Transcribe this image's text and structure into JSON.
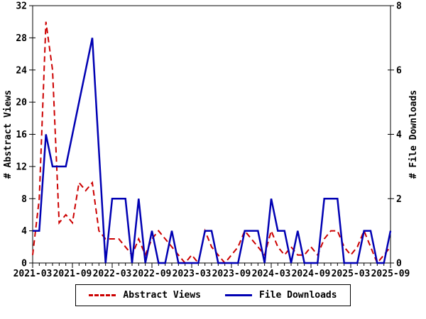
{
  "chart_data": {
    "type": "line",
    "title": "",
    "x_label": "",
    "months": [
      "2021-03",
      "2021-04",
      "2021-05",
      "2021-06",
      "2021-07",
      "2021-08",
      "2021-09",
      "2021-10",
      "2021-11",
      "2021-12",
      "2022-01",
      "2022-02",
      "2022-03",
      "2022-04",
      "2022-05",
      "2022-06",
      "2022-07",
      "2022-08",
      "2022-09",
      "2022-10",
      "2022-11",
      "2022-12",
      "2023-01",
      "2023-02",
      "2023-03",
      "2023-04",
      "2023-05",
      "2023-06",
      "2023-07",
      "2023-08",
      "2023-09",
      "2023-10",
      "2023-11",
      "2023-12",
      "2024-01",
      "2024-02",
      "2024-03",
      "2024-04",
      "2024-05",
      "2024-06",
      "2024-07",
      "2024-08",
      "2024-09",
      "2024-10",
      "2024-11",
      "2024-12",
      "2025-01",
      "2025-02",
      "2025-03",
      "2025-04",
      "2025-05",
      "2025-06",
      "2025-07",
      "2025-08",
      "2025-09"
    ],
    "series": [
      {
        "name": "Abstract Views",
        "axis": "left",
        "color": "#cc0000",
        "style": "dashed",
        "values": [
          1,
          8,
          30,
          24,
          5,
          6,
          5,
          10,
          9,
          10,
          4,
          3,
          3,
          3,
          2,
          1,
          3,
          1,
          3,
          4,
          3,
          2,
          1,
          0,
          1,
          0,
          4,
          2,
          1,
          0,
          1,
          2,
          4,
          3,
          2,
          1,
          4,
          2,
          1,
          2,
          1,
          1,
          2,
          1,
          3,
          4,
          4,
          2,
          1,
          2,
          4,
          2,
          0,
          1,
          2
        ]
      },
      {
        "name": "File Downloads",
        "axis": "right",
        "color": "#0000b3",
        "style": "solid",
        "values": [
          1,
          1,
          4,
          3,
          3,
          3,
          4,
          5,
          6,
          7,
          3.5,
          0,
          2,
          2,
          2,
          0,
          2,
          0,
          1,
          0,
          0,
          1,
          0,
          0,
          0,
          0,
          1,
          1,
          0,
          0,
          0,
          0,
          1,
          1,
          1,
          0,
          2,
          1,
          1,
          0,
          1,
          0,
          0,
          0,
          2,
          2,
          2,
          0,
          0,
          0,
          1,
          1,
          0,
          0,
          1
        ]
      }
    ],
    "left_axis": {
      "label": "# Abstract Views",
      "min": 0,
      "max": 32,
      "ticks": [
        0,
        4,
        8,
        12,
        16,
        20,
        24,
        28,
        32
      ]
    },
    "right_axis": {
      "label": "# File Downloads",
      "min": 0,
      "max": 8,
      "ticks": [
        0,
        2,
        4,
        6,
        8
      ]
    },
    "x_axis": {
      "major_tick_labels": [
        "2021-03",
        "2021-09",
        "2022-03",
        "2022-09",
        "2023-03",
        "2023-09",
        "2024-03",
        "2024-09",
        "2025-03",
        "2025-09"
      ],
      "major_tick_every_months": 6,
      "minor_tick_every_months": 1
    },
    "legend": {
      "position": "bottom",
      "entries": [
        "Abstract Views",
        "File Downloads"
      ]
    },
    "grid": "off",
    "background_color": "#ffffff",
    "frame_color": "#000000"
  }
}
